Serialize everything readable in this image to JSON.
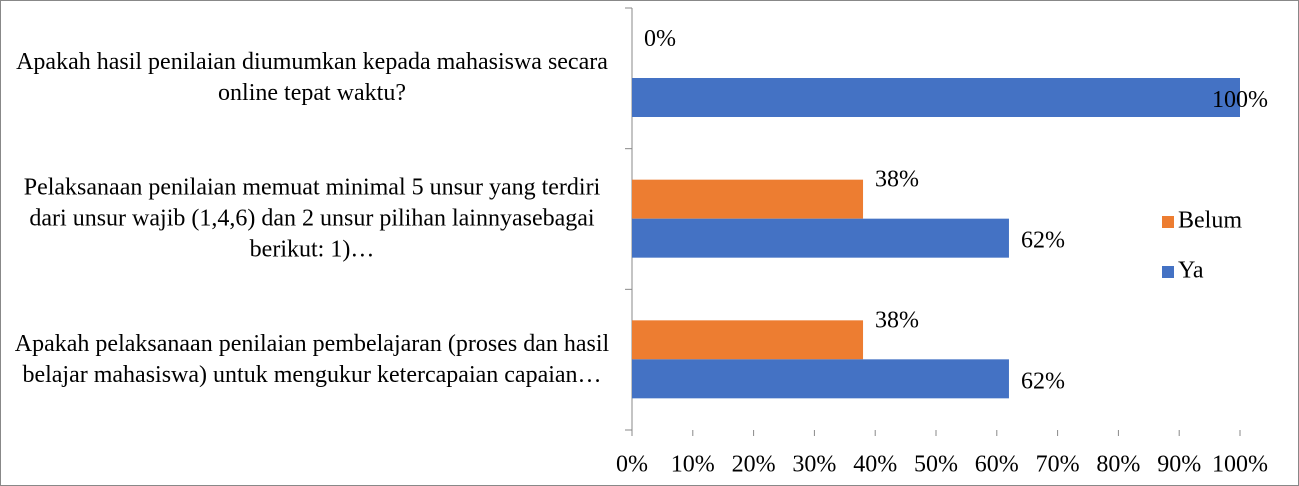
{
  "chart_data": {
    "type": "bar",
    "orientation": "horizontal",
    "categories": [
      "Apakah hasil penilaian diumumkan kepada mahasiswa secara online tepat waktu?",
      "Pelaksanaan penilaian memuat minimal 5 unsur yang terdiri dari unsur wajib (1,4,6) dan 2 unsur pilihan lainnyasebagai berikut: 1)…",
      "Apakah pelaksanaan penilaian pembelajaran (proses dan hasil belajar mahasiswa) untuk mengukur ketercapaian capaian…"
    ],
    "series": [
      {
        "name": "Belum",
        "color": "#ed7d31",
        "values": [
          0,
          38,
          38
        ],
        "value_labels": [
          "0%",
          "38%",
          "38%"
        ]
      },
      {
        "name": "Ya",
        "color": "#4472c4",
        "values": [
          100,
          62,
          62
        ],
        "value_labels": [
          "100%",
          "62%",
          "62%"
        ]
      }
    ],
    "xlim": [
      0,
      100
    ],
    "xticks": [
      {
        "value": 0,
        "label": "0%"
      },
      {
        "value": 10,
        "label": "10%"
      },
      {
        "value": 20,
        "label": "20%"
      },
      {
        "value": 30,
        "label": "30%"
      },
      {
        "value": 40,
        "label": "40%"
      },
      {
        "value": 50,
        "label": "50%"
      },
      {
        "value": 60,
        "label": "60%"
      },
      {
        "value": 70,
        "label": "70%"
      },
      {
        "value": 80,
        "label": "80%"
      },
      {
        "value": 90,
        "label": "90%"
      },
      {
        "value": 100,
        "label": "100%"
      }
    ],
    "legend": "right",
    "grid": false
  }
}
